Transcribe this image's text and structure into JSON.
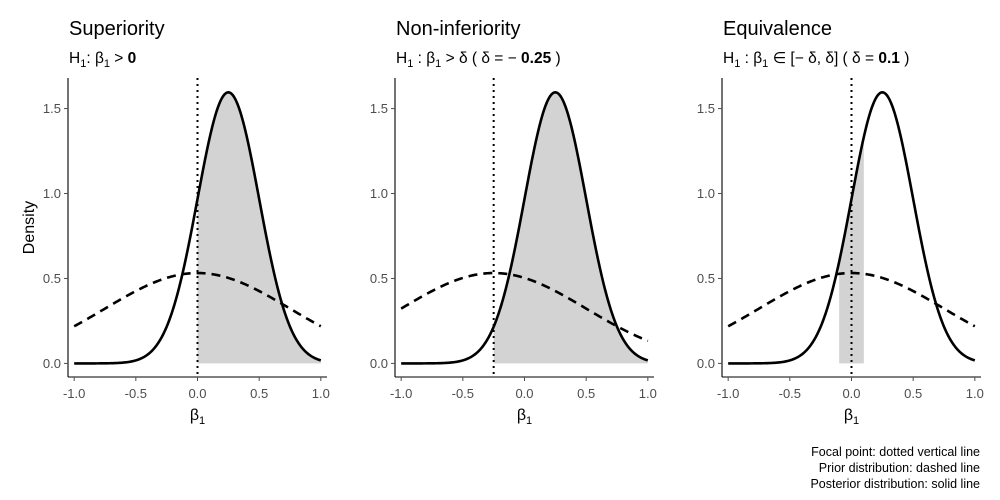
{
  "chart_data": [
    {
      "type": "line",
      "title": "Superiority",
      "subtitle": {
        "prefix": "H",
        "sub": "1",
        "mid": ": β",
        "sub2": "1",
        "rel": " > ",
        "bold": "0",
        "suffix": ""
      },
      "xlabel": "β",
      "xlabel_sub": "1",
      "ylabel": "Density",
      "xlim": [
        -1.05,
        1.05
      ],
      "ylim": [
        -0.08,
        1.68
      ],
      "xticks": [
        -1.0,
        -0.5,
        0.0,
        0.5,
        1.0
      ],
      "xtick_labels": [
        "-1.0",
        "-0.5",
        "0.0",
        "0.5",
        "1.0"
      ],
      "yticks": [
        0.0,
        0.5,
        1.0,
        1.5
      ],
      "ytick_labels": [
        "0.0",
        "0.5",
        "1.0",
        "1.5"
      ],
      "focal_point": 0.0,
      "shaded_region": [
        0.0,
        1.0
      ],
      "series": [
        {
          "style": "solid",
          "curve": "normal",
          "mean": 0.25,
          "sd": 0.25,
          "x_range": [
            -1.0,
            1.0
          ]
        },
        {
          "style": "dashed",
          "curve": "normal",
          "mean": 0.0,
          "sd": 0.75,
          "x_range": [
            -1.0,
            1.0
          ]
        }
      ]
    },
    {
      "type": "line",
      "title": "Non-inferiority",
      "subtitle": {
        "prefix": "H",
        "sub": "1",
        "mid": " :  β",
        "sub2": "1",
        "rel": " > δ  ( δ = − ",
        "bold": "0.25",
        "suffix": " )"
      },
      "xlabel": "β",
      "xlabel_sub": "1",
      "ylabel": "",
      "xlim": [
        -1.05,
        1.05
      ],
      "ylim": [
        -0.08,
        1.68
      ],
      "xticks": [
        -1.0,
        -0.5,
        0.0,
        0.5,
        1.0
      ],
      "xtick_labels": [
        "-1.0",
        "-0.5",
        "0.0",
        "0.5",
        "1.0"
      ],
      "yticks": [
        0.0,
        0.5,
        1.0,
        1.5
      ],
      "ytick_labels": [
        "0.0",
        "0.5",
        "1.0",
        "1.5"
      ],
      "focal_point": -0.25,
      "shaded_region": [
        -0.25,
        1.0
      ],
      "series": [
        {
          "style": "solid",
          "curve": "normal",
          "mean": 0.25,
          "sd": 0.25,
          "x_range": [
            -1.0,
            1.0
          ]
        },
        {
          "style": "dashed",
          "curve": "normal",
          "mean": -0.25,
          "sd": 0.75,
          "x_range": [
            -1.0,
            1.0
          ]
        }
      ]
    },
    {
      "type": "line",
      "title": "Equivalence",
      "subtitle": {
        "prefix": "H",
        "sub": "1",
        "mid": " :  β",
        "sub2": "1",
        "rel": " ∈  [− δ, δ]  ( δ = ",
        "bold": "0.1",
        "suffix": " )"
      },
      "xlabel": "β",
      "xlabel_sub": "1",
      "ylabel": "",
      "xlim": [
        -1.05,
        1.05
      ],
      "ylim": [
        -0.08,
        1.68
      ],
      "xticks": [
        -1.0,
        -0.5,
        0.0,
        0.5,
        1.0
      ],
      "xtick_labels": [
        "-1.0",
        "-0.5",
        "0.0",
        "0.5",
        "1.0"
      ],
      "yticks": [
        0.0,
        0.5,
        1.0,
        1.5
      ],
      "ytick_labels": [
        "0.0",
        "0.5",
        "1.0",
        "1.5"
      ],
      "focal_point": 0.0,
      "shaded_region": [
        -0.1,
        0.1
      ],
      "series": [
        {
          "style": "solid",
          "curve": "normal",
          "mean": 0.25,
          "sd": 0.25,
          "x_range": [
            -1.0,
            1.0
          ]
        },
        {
          "style": "dashed",
          "curve": "normal",
          "mean": 0.0,
          "sd": 0.75,
          "x_range": [
            -1.0,
            1.0
          ]
        }
      ]
    }
  ],
  "caption": [
    "Focal point: dotted vertical line",
    "Prior distribution: dashed line",
    "Posterior distribution: solid line"
  ],
  "colors": {
    "shade": "#d3d3d3",
    "line": "#000000",
    "tick": "#4d4d4d",
    "axis": "#000000"
  }
}
